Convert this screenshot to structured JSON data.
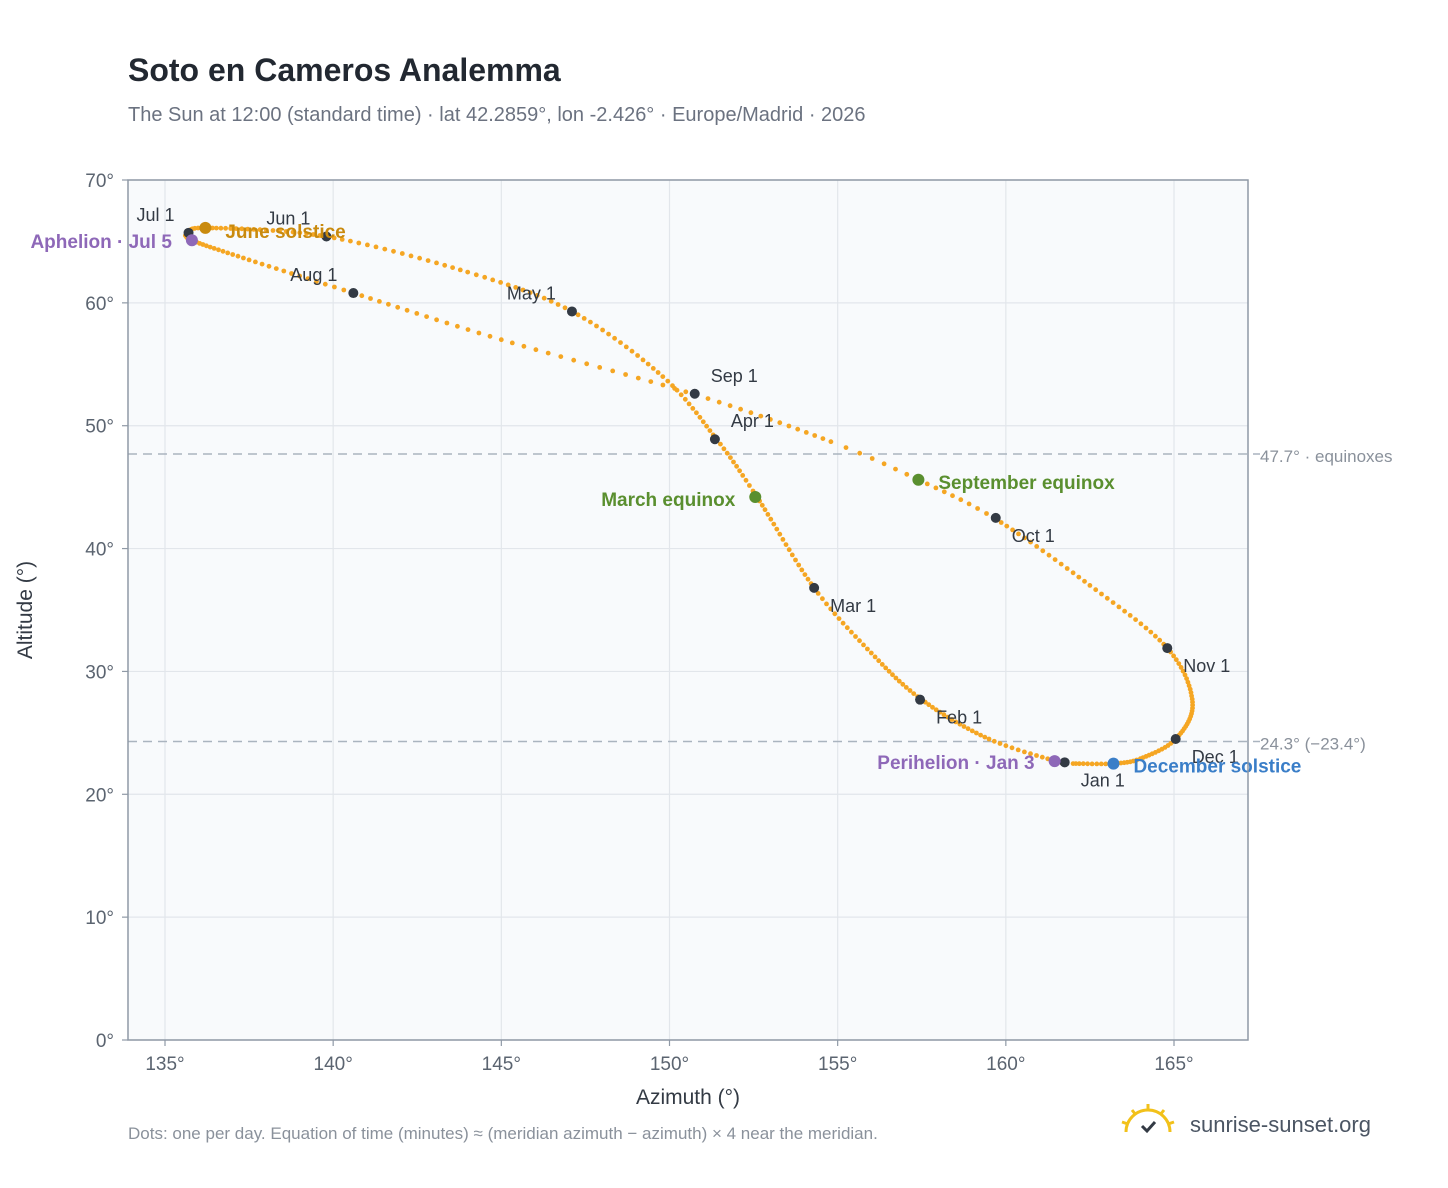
{
  "title": "Soto en Cameros Analemma",
  "subtitle": "The Sun at 12:00 (standard time) · lat 42.2859°, lon -2.426° · Europe/Madrid · 2026",
  "footnote": "Dots: one per day. Equation of time (minutes) ≈ (meridian azimuth − azimuth) × 4 near the meridian.",
  "brand": "sunrise-sunset.org",
  "colors": {
    "curve": "#f5a623",
    "month_dot": "#333a44",
    "june_solstice": "#c98a0e",
    "december_solstice": "#3a7ec8",
    "equinox": "#5a8f2f",
    "apsis": "#8e68b8",
    "plot_bg": "#f8fafc",
    "grid": "#e2e6eb",
    "axis": "#8f99a6",
    "ref_line": "#aab4bf"
  },
  "chart_data": {
    "type": "scatter",
    "title": "Soto en Cameros Analemma",
    "xlabel": "Azimuth (°)",
    "ylabel": "Altitude (°)",
    "xlim": [
      133.9,
      167.2
    ],
    "ylim": [
      0,
      70
    ],
    "xticks": [
      135,
      140,
      145,
      150,
      155,
      160,
      165
    ],
    "yticks": [
      0,
      10,
      20,
      30,
      40,
      50,
      60,
      70
    ],
    "tick_suffix": "°",
    "grid": true,
    "reference_lines": [
      {
        "y": 47.7,
        "label": "47.7° · equinoxes"
      },
      {
        "y": 24.3,
        "label": "24.3° (−23.4°)"
      }
    ],
    "analemma_path": [
      {
        "day": 1,
        "az": 161.75,
        "alt": 22.5
      },
      {
        "day": 15,
        "az": 159.5,
        "alt": 24.5
      },
      {
        "day": 32,
        "az": 157.5,
        "alt": 27.7
      },
      {
        "day": 46,
        "az": 156.0,
        "alt": 31.5
      },
      {
        "day": 60,
        "az": 154.3,
        "alt": 36.8
      },
      {
        "day": 79,
        "az": 152.6,
        "alt": 44.2
      },
      {
        "day": 91,
        "az": 151.4,
        "alt": 48.9
      },
      {
        "day": 105,
        "az": 149.8,
        "alt": 54.0
      },
      {
        "day": 121,
        "az": 147.1,
        "alt": 59.3
      },
      {
        "day": 135,
        "az": 144.0,
        "alt": 62.5
      },
      {
        "day": 152,
        "az": 139.8,
        "alt": 65.4
      },
      {
        "day": 172,
        "az": 136.3,
        "alt": 66.1
      },
      {
        "day": 182,
        "az": 135.7,
        "alt": 65.7
      },
      {
        "day": 186,
        "az": 135.8,
        "alt": 65.1
      },
      {
        "day": 200,
        "az": 137.5,
        "alt": 63.5
      },
      {
        "day": 213,
        "az": 140.6,
        "alt": 60.8
      },
      {
        "day": 228,
        "az": 145.0,
        "alt": 57.0
      },
      {
        "day": 244,
        "az": 150.8,
        "alt": 52.5
      },
      {
        "day": 258,
        "az": 154.8,
        "alt": 48.7
      },
      {
        "day": 265,
        "az": 157.4,
        "alt": 45.6
      },
      {
        "day": 274,
        "az": 159.7,
        "alt": 42.4
      },
      {
        "day": 290,
        "az": 162.5,
        "alt": 37.0
      },
      {
        "day": 305,
        "az": 164.8,
        "alt": 31.9
      },
      {
        "day": 320,
        "az": 165.55,
        "alt": 27.5
      },
      {
        "day": 335,
        "az": 165.05,
        "alt": 24.5
      },
      {
        "day": 347,
        "az": 164.0,
        "alt": 22.9
      },
      {
        "day": 355,
        "az": 163.2,
        "alt": 22.5
      },
      {
        "day": 365,
        "az": 162.0,
        "alt": 22.5
      }
    ],
    "month_markers": [
      {
        "label": "Jan 1",
        "az": 161.75,
        "alt": 22.6
      },
      {
        "label": "Feb 1",
        "az": 157.45,
        "alt": 27.7
      },
      {
        "label": "Mar 1",
        "az": 154.3,
        "alt": 36.8
      },
      {
        "label": "Apr 1",
        "az": 151.35,
        "alt": 48.9
      },
      {
        "label": "May 1",
        "az": 147.1,
        "alt": 59.3
      },
      {
        "label": "Jun 1",
        "az": 139.8,
        "alt": 65.4
      },
      {
        "label": "Jul 1",
        "az": 135.7,
        "alt": 65.7
      },
      {
        "label": "Aug 1",
        "az": 140.6,
        "alt": 60.8
      },
      {
        "label": "Sep 1",
        "az": 150.75,
        "alt": 52.6
      },
      {
        "label": "Oct 1",
        "az": 159.7,
        "alt": 42.5
      },
      {
        "label": "Nov 1",
        "az": 164.8,
        "alt": 31.9
      },
      {
        "label": "Dec 1",
        "az": 165.05,
        "alt": 24.5
      }
    ],
    "events": [
      {
        "label": "June solstice",
        "az": 136.2,
        "alt": 66.1,
        "kind": "june_solstice"
      },
      {
        "label": "Aphelion · Jul 5",
        "az": 135.8,
        "alt": 65.1,
        "kind": "apsis"
      },
      {
        "label": "March equinox",
        "az": 152.55,
        "alt": 44.2,
        "kind": "equinox"
      },
      {
        "label": "September equinox",
        "az": 157.4,
        "alt": 45.6,
        "kind": "equinox"
      },
      {
        "label": "Perihelion · Jan 3",
        "az": 161.45,
        "alt": 22.7,
        "kind": "apsis"
      },
      {
        "label": "December solstice",
        "az": 163.2,
        "alt": 22.5,
        "kind": "december_solstice"
      }
    ]
  }
}
